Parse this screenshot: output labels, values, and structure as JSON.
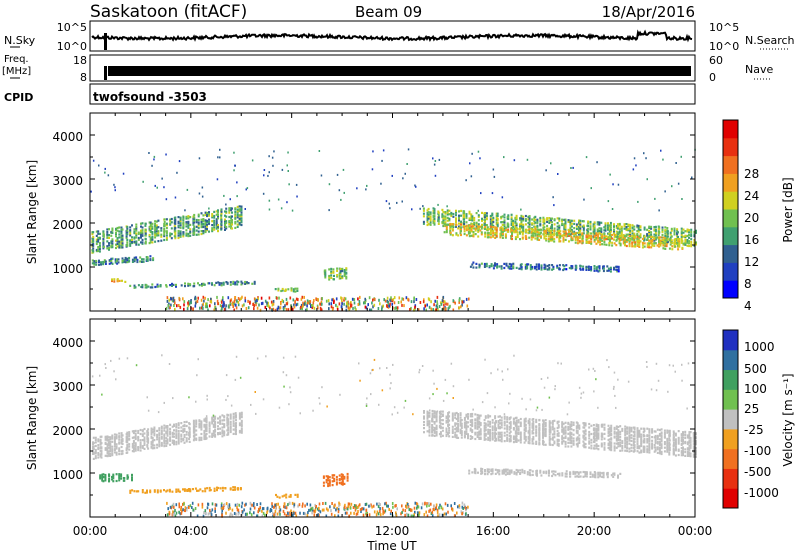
{
  "header": {
    "station": "Saskatoon (fitACF)",
    "beam": "Beam 09",
    "date": "18/Apr/2016"
  },
  "sky_panel": {
    "left_label": "N.Sky",
    "right_label": "N.Search",
    "left_ticks": [
      "10^5",
      "10^0"
    ],
    "right_ticks": [
      "10^5",
      "10^0"
    ]
  },
  "freq_panel": {
    "left_label_1": "Freq.",
    "left_label_2": "[MHz]",
    "right_label": "Nave",
    "left_ticks": [
      "18",
      "8"
    ],
    "right_ticks": [
      "60",
      "0"
    ]
  },
  "cpid": {
    "label": "CPID",
    "value": "twofsound -3503"
  },
  "xaxis": {
    "label": "Time UT",
    "ticks": [
      "00:00",
      "04:00",
      "08:00",
      "12:00",
      "16:00",
      "20:00",
      "00:00"
    ]
  },
  "power_panel": {
    "ylabel": "Slant Range [km]",
    "yticks": [
      "4000",
      "3000",
      "2000",
      "1000"
    ],
    "colorbar_label": "Power [dB]",
    "colorbar_ticks": [
      "28",
      "24",
      "20",
      "16",
      "12",
      "8",
      "4"
    ],
    "colors": [
      "#0000ff",
      "#2040c0",
      "#306090",
      "#40a070",
      "#70c050",
      "#d0d020",
      "#f0a020",
      "#f07020",
      "#e83010",
      "#e00000"
    ]
  },
  "velocity_panel": {
    "ylabel": "Slant Range [km]",
    "yticks": [
      "4000",
      "3000",
      "2000",
      "1000"
    ],
    "colorbar_label": "Velocity [m s⁻¹]",
    "colorbar_ticks": [
      "1000",
      "500",
      "100",
      "25",
      "-25",
      "-100",
      "-500",
      "-1000"
    ],
    "colors": [
      "#2030c0",
      "#3070a0",
      "#40a060",
      "#70c050",
      "#c0c0c0",
      "#f0a020",
      "#f07020",
      "#e83010",
      "#e00000"
    ]
  },
  "chart_data": [
    {
      "type": "heatmap",
      "title": "Power [dB]",
      "xlabel": "Time UT",
      "ylabel": "Slant Range [km]",
      "xlim": [
        0,
        24
      ],
      "ylim": [
        0,
        4500
      ],
      "colorbar_range": [
        0,
        32
      ],
      "echo_regions": [
        {
          "t_start": 0.0,
          "t_end": 6.0,
          "range_center_start": 1600,
          "range_center_end": 2200,
          "width_km": 500,
          "power": 12
        },
        {
          "t_start": 0.0,
          "t_end": 2.5,
          "range_center_start": 1150,
          "range_center_end": 1250,
          "width_km": 150,
          "power": 10
        },
        {
          "t_start": 0.8,
          "t_end": 1.4,
          "range_center_start": 750,
          "range_center_end": 750,
          "width_km": 100,
          "power": 20
        },
        {
          "t_start": 1.5,
          "t_end": 6.5,
          "range_center_start": 600,
          "range_center_end": 700,
          "width_km": 100,
          "power": 10
        },
        {
          "t_start": 7.3,
          "t_end": 8.2,
          "range_center_start": 520,
          "range_center_end": 520,
          "width_km": 80,
          "power": 16
        },
        {
          "t_start": 9.2,
          "t_end": 10.2,
          "range_center_start": 850,
          "range_center_end": 900,
          "width_km": 250,
          "power": 14
        },
        {
          "t_start": 13.2,
          "t_end": 24.0,
          "range_center_start": 2200,
          "range_center_end": 1700,
          "width_km": 400,
          "power": 14
        },
        {
          "t_start": 14.0,
          "t_end": 23.5,
          "range_center_start": 1900,
          "range_center_end": 1550,
          "width_km": 250,
          "power": 18
        },
        {
          "t_start": 15.0,
          "t_end": 21.0,
          "range_center_start": 1100,
          "range_center_end": 1000,
          "width_km": 150,
          "power": 8
        }
      ]
    },
    {
      "type": "heatmap",
      "title": "Velocity [m s⁻¹]",
      "xlabel": "Time UT",
      "ylabel": "Slant Range [km]",
      "xlim": [
        0,
        24
      ],
      "ylim": [
        0,
        4500
      ],
      "colorbar_range": [
        -1000,
        1000
      ],
      "echo_regions": [
        {
          "t_start": 0.0,
          "t_end": 6.0,
          "range_center_start": 1600,
          "range_center_end": 2200,
          "width_km": 500,
          "velocity": 0
        },
        {
          "t_start": 0.3,
          "t_end": 1.6,
          "range_center_start": 950,
          "range_center_end": 950,
          "width_km": 200,
          "velocity": 80
        },
        {
          "t_start": 1.5,
          "t_end": 6.0,
          "range_center_start": 620,
          "range_center_end": 700,
          "width_km": 100,
          "velocity": -80
        },
        {
          "t_start": 7.3,
          "t_end": 8.2,
          "range_center_start": 520,
          "range_center_end": 520,
          "width_km": 80,
          "velocity": -80
        },
        {
          "t_start": 9.2,
          "t_end": 10.2,
          "range_center_start": 850,
          "range_center_end": 900,
          "width_km": 250,
          "velocity": -400
        },
        {
          "t_start": 13.2,
          "t_end": 24.0,
          "range_center_start": 2200,
          "range_center_end": 1700,
          "width_km": 600,
          "velocity": 0
        },
        {
          "t_start": 15.0,
          "t_end": 21.0,
          "range_center_start": 1100,
          "range_center_end": 1000,
          "width_km": 150,
          "velocity": 0
        }
      ]
    }
  ]
}
